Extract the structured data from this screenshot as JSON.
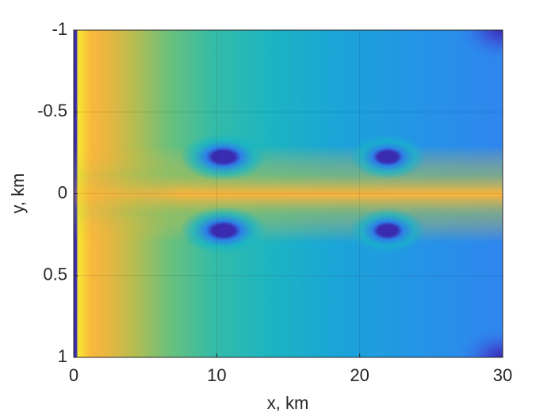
{
  "chart_data": {
    "type": "heatmap",
    "xlabel": "x, km",
    "ylabel": "y, km",
    "xlim": [
      0,
      30
    ],
    "xticks": [
      0,
      10,
      20,
      30
    ],
    "ylim": [
      -1,
      1
    ],
    "yticks": [
      -1,
      -0.5,
      0,
      0.5,
      1
    ],
    "y_reversed": true,
    "grid": true
  }
}
